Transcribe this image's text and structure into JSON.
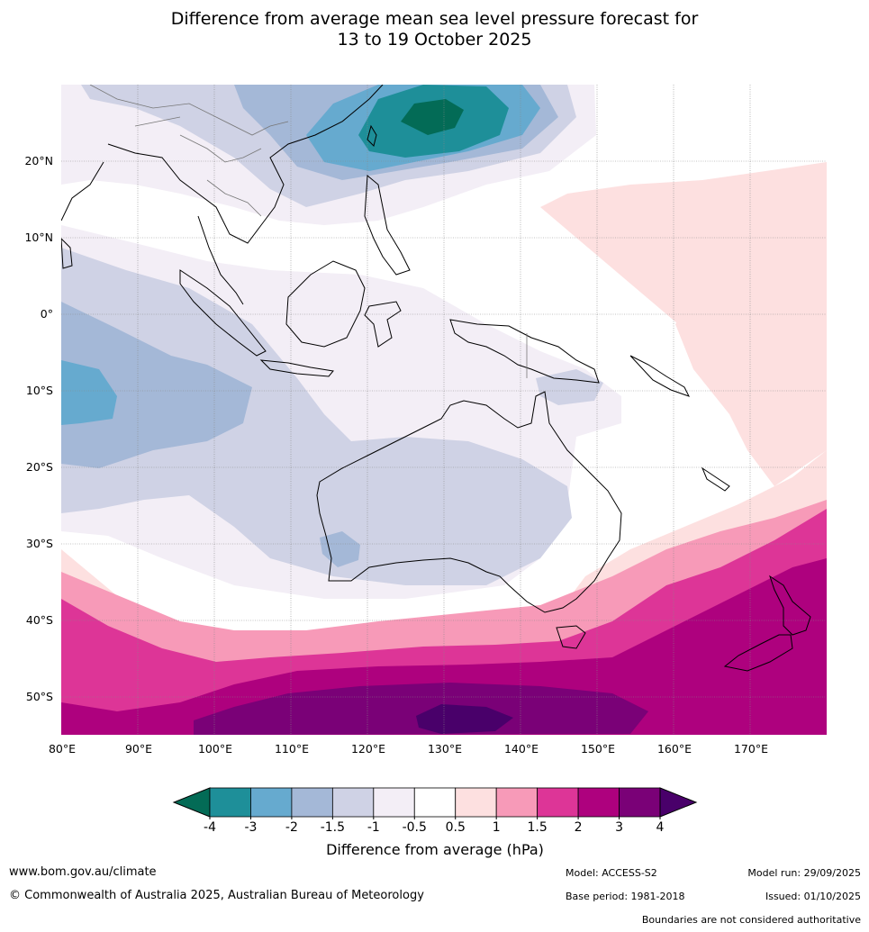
{
  "title_line1": "Difference from average mean sea level pressure forecast for",
  "title_line2": "13 to 19 October 2025",
  "lat_labels": [
    "20°N",
    "10°N",
    "0°",
    "10°S",
    "20°S",
    "30°S",
    "40°S",
    "50°S"
  ],
  "lon_labels": [
    "80°E",
    "90°E",
    "100°E",
    "110°E",
    "120°E",
    "130°E",
    "140°E",
    "150°E",
    "160°E",
    "170°E"
  ],
  "colorbar": {
    "title": "Difference from average (hPa)",
    "ticks": [
      "-4",
      "-3",
      "-2",
      "-1.5",
      "-1",
      "-0.5",
      "0.5",
      "1",
      "1.5",
      "2",
      "3",
      "4"
    ],
    "colors": [
      "#036b56",
      "#1e8f99",
      "#66aacf",
      "#a4b8d7",
      "#cfd2e5",
      "#f3eef6",
      "#ffffff",
      "#fde0e0",
      "#f79ab8",
      "#dd3597",
      "#ae017e",
      "#7a0177",
      "#49006a"
    ]
  },
  "footer": {
    "url": "www.bom.gov.au/climate",
    "copyright": "© Commonwealth of Australia 2025, Australian Bureau of Meteorology",
    "model": "Model: ACCESS-S2",
    "base_period": "Base period: 1981-2018",
    "model_run": "Model run: 29/09/2025",
    "issued": "Issued: 01/10/2025",
    "disclaimer": "Boundaries are not considered authoritative"
  }
}
